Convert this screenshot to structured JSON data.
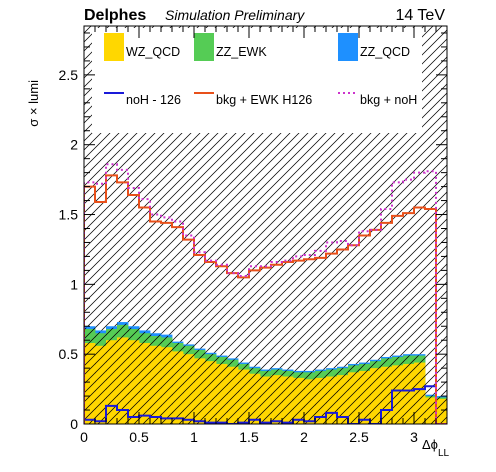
{
  "header": {
    "title": "Delphes",
    "subtitle": "Simulation Preliminary",
    "energy": "14 TeV"
  },
  "chart_data": {
    "type": "bar",
    "xlabel": "Δϕ",
    "xlabel_sub": "LL",
    "ylabel": "σ × lumi",
    "xlim": [
      0,
      3.3
    ],
    "ylim": [
      0,
      2.85
    ],
    "x_ticks": [
      0,
      0.5,
      1,
      1.5,
      2,
      2.5,
      3
    ],
    "x_tick_labels": [
      "0",
      "0.5",
      "1",
      "1.5",
      "2",
      "2.5",
      "3"
    ],
    "y_ticks": [
      0,
      0.5,
      1,
      1.5,
      2,
      2.5
    ],
    "y_tick_labels": [
      "0",
      "0.5",
      "1",
      "1.5",
      "2",
      "2.5"
    ],
    "grid": false,
    "legend_position": "top",
    "bin_edges": [
      0,
      0.1,
      0.2,
      0.3,
      0.4,
      0.5,
      0.6,
      0.7,
      0.8,
      0.9,
      1.0,
      1.1,
      1.2,
      1.3,
      1.4,
      1.5,
      1.6,
      1.7,
      1.8,
      1.9,
      2.0,
      2.1,
      2.2,
      2.3,
      2.4,
      2.5,
      2.6,
      2.7,
      2.8,
      2.9,
      3.0,
      3.1,
      3.2,
      3.3
    ],
    "series": [
      {
        "name": "WZ_QCD",
        "kind": "stack",
        "color": "#ffd700",
        "values": [
          0.58,
          0.56,
          0.6,
          0.62,
          0.6,
          0.58,
          0.56,
          0.55,
          0.52,
          0.5,
          0.47,
          0.45,
          0.43,
          0.41,
          0.39,
          0.36,
          0.34,
          0.35,
          0.34,
          0.33,
          0.32,
          0.33,
          0.34,
          0.35,
          0.37,
          0.38,
          0.4,
          0.41,
          0.42,
          0.43,
          0.44,
          0.19,
          0.18
        ]
      },
      {
        "name": "ZZ_EWK",
        "kind": "stack",
        "color": "#55cc55",
        "values": [
          0.1,
          0.09,
          0.08,
          0.09,
          0.08,
          0.07,
          0.07,
          0.07,
          0.06,
          0.06,
          0.06,
          0.05,
          0.05,
          0.05,
          0.04,
          0.04,
          0.04,
          0.04,
          0.04,
          0.04,
          0.05,
          0.05,
          0.05,
          0.05,
          0.05,
          0.05,
          0.05,
          0.06,
          0.06,
          0.06,
          0.05,
          0.01,
          0.01
        ]
      },
      {
        "name": "ZZ_QCD",
        "kind": "stack",
        "color": "#1e90ff",
        "values": [
          0.02,
          0.02,
          0.02,
          0.02,
          0.02,
          0.02,
          0.02,
          0.02,
          0.01,
          0.01,
          0.01,
          0.01,
          0.01,
          0.01,
          0.01,
          0.01,
          0.01,
          0.01,
          0.01,
          0.01,
          0.01,
          0.01,
          0.01,
          0.01,
          0.01,
          0.01,
          0.01,
          0.01,
          0.01,
          0.01,
          0.01,
          0.01,
          0.01
        ]
      },
      {
        "name": "noH - 126",
        "kind": "line",
        "color": "#1a1ad9",
        "dashed": false,
        "values": [
          0.03,
          0.02,
          0.13,
          0.1,
          0.05,
          0.06,
          0.05,
          0.04,
          0.04,
          0.03,
          0.02,
          0.01,
          0.01,
          0.0,
          0.01,
          0.03,
          0.01,
          0.02,
          0.01,
          0.03,
          0.02,
          0.05,
          0.08,
          0.05,
          0.0,
          0.03,
          0.0,
          0.1,
          0.24,
          0.24,
          0.25,
          0.27,
          0.0
        ]
      },
      {
        "name": "bkg + EWK H126",
        "kind": "line",
        "color": "#e8501a",
        "dashed": false,
        "values": [
          1.7,
          1.59,
          1.78,
          1.73,
          1.64,
          1.55,
          1.45,
          1.44,
          1.41,
          1.32,
          1.21,
          1.16,
          1.13,
          1.08,
          1.05,
          1.1,
          1.12,
          1.14,
          1.16,
          1.17,
          1.18,
          1.19,
          1.22,
          1.25,
          1.28,
          1.35,
          1.39,
          1.44,
          1.49,
          1.51,
          1.55,
          1.54,
          0.0
        ]
      },
      {
        "name": "bkg + noH",
        "kind": "line",
        "color": "#cc33cc",
        "dashed": true,
        "values": [
          1.73,
          1.72,
          1.86,
          1.82,
          1.69,
          1.61,
          1.5,
          1.48,
          1.45,
          1.35,
          1.23,
          1.17,
          1.14,
          1.08,
          1.06,
          1.13,
          1.13,
          1.16,
          1.17,
          1.2,
          1.21,
          1.24,
          1.3,
          1.31,
          1.28,
          1.38,
          1.39,
          1.54,
          1.73,
          1.75,
          1.8,
          1.81,
          0.0
        ]
      }
    ]
  }
}
